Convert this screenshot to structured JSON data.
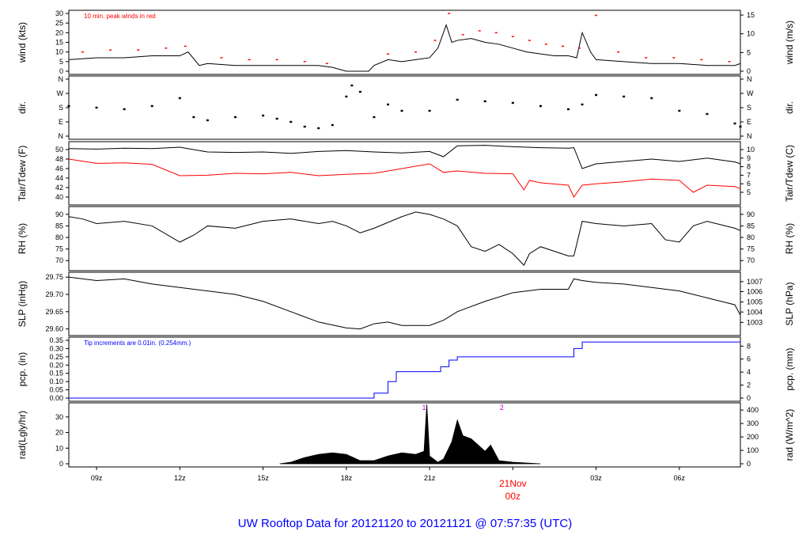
{
  "title": "UW Rooftop Data for 20121120  to  20121121 @ 07:57:35  (UTC)",
  "colors": {
    "series_primary": "#000000",
    "series_dew": "#ff0000",
    "series_precip": "#0000ff",
    "peak_marker": "#ff0000",
    "title": "#0000ff",
    "date_label": "#ff0000",
    "noon_marker": "#cc00cc"
  },
  "chart_data": [
    {
      "type": "line",
      "panel": "wind",
      "left_label": "wind (kts)",
      "right_label": "wind (m/s)",
      "annotation": "10 min. peak winds in red",
      "ylim": [
        0,
        30
      ],
      "left_ticks": [
        0,
        5,
        10,
        15,
        20,
        25,
        30
      ],
      "right_ticks": [
        0,
        5,
        10,
        15
      ],
      "right_ticks_kts": [
        0,
        9.72,
        19.44,
        29.16
      ],
      "series": [
        {
          "name": "wind",
          "color": "#000000",
          "x": [
            8,
            9,
            10,
            11,
            12,
            12.3,
            12.7,
            13,
            14,
            15,
            16,
            17,
            17.5,
            18,
            18.3,
            18.8,
            19,
            19.5,
            20,
            20.5,
            21,
            21.3,
            21.6,
            21.8,
            22,
            22.5,
            23,
            23.5,
            24,
            24.5,
            25,
            25.5,
            26,
            26.3,
            26.5,
            26.8,
            27,
            28,
            29,
            30,
            31,
            32,
            32.2
          ],
          "y": [
            6,
            7,
            7,
            8,
            8,
            10,
            3,
            4,
            3,
            3,
            3,
            3,
            2,
            0,
            0,
            0,
            3,
            6,
            5,
            6,
            7,
            12,
            24,
            15,
            16,
            17,
            15,
            14,
            12,
            10,
            9,
            8,
            8,
            7,
            20,
            10,
            6,
            5,
            4,
            4,
            3,
            3,
            4
          ]
        },
        {
          "name": "10 min. peak winds",
          "color": "#ff0000",
          "x": [
            8.5,
            9.5,
            10.5,
            11.5,
            12.2,
            13.5,
            14.5,
            15.5,
            16.5,
            17.3,
            19.5,
            20.5,
            21.2,
            21.7,
            22.2,
            22.8,
            23.4,
            24,
            24.6,
            25.2,
            25.8,
            26.4,
            27,
            27.8,
            28.8,
            29.8,
            30.8,
            31.8
          ],
          "y": [
            10,
            11,
            11,
            12,
            13,
            7,
            6,
            6,
            5,
            4,
            9,
            10,
            16,
            30,
            19,
            21,
            20,
            18,
            16,
            14,
            13,
            12,
            29,
            10,
            7,
            7,
            6,
            5
          ]
        }
      ]
    },
    {
      "type": "scatter",
      "panel": "dir",
      "left_label": "dir.",
      "right_label": "dir.",
      "ylim": [
        0,
        360
      ],
      "tick_values": [
        0,
        90,
        180,
        270,
        360
      ],
      "tick_labels": [
        "N",
        "E",
        "S",
        "W",
        "N"
      ],
      "series": [
        {
          "name": "direction",
          "color": "#000000",
          "x": [
            8,
            9,
            10,
            11,
            12,
            12.5,
            13,
            14,
            15,
            15.5,
            16,
            16.5,
            17,
            17.5,
            18,
            18.2,
            18.5,
            19,
            19.5,
            20,
            21,
            22,
            23,
            24,
            25,
            26,
            26.5,
            27,
            28,
            29,
            30,
            31,
            32,
            32.2
          ],
          "y": [
            190,
            180,
            170,
            190,
            240,
            120,
            100,
            120,
            130,
            110,
            90,
            60,
            50,
            70,
            250,
            320,
            280,
            120,
            200,
            160,
            160,
            230,
            220,
            210,
            190,
            170,
            200,
            260,
            250,
            240,
            160,
            140,
            80,
            60
          ]
        }
      ]
    },
    {
      "type": "line",
      "panel": "temp",
      "left_label": "Tair/Tdew (F)",
      "right_label": "Tair/Tdew (C)",
      "ylim": [
        39,
        51
      ],
      "left_ticks": [
        40,
        42,
        44,
        46,
        48,
        50
      ],
      "right_ticks": [
        5,
        6,
        7,
        8,
        9,
        10
      ],
      "right_ticks_f": [
        41,
        42.8,
        44.6,
        46.4,
        48.2,
        50
      ],
      "series": [
        {
          "name": "Tair",
          "color": "#000000",
          "x": [
            8,
            9,
            10,
            11,
            12,
            13,
            14,
            15,
            16,
            17,
            18,
            19,
            20,
            21,
            21.5,
            22,
            23,
            24,
            25,
            26,
            26.2,
            26.5,
            27,
            28,
            29,
            30,
            31,
            32,
            32.2
          ],
          "y": [
            50.2,
            50.1,
            50.3,
            50.2,
            50.5,
            49.5,
            49.4,
            49.5,
            49.2,
            49.6,
            49.8,
            49.5,
            49.3,
            49.6,
            48.5,
            50.8,
            50.9,
            50.6,
            50.4,
            50.3,
            50.4,
            46,
            47,
            47.5,
            48,
            47.5,
            48.2,
            47.4,
            47
          ]
        },
        {
          "name": "Tdew",
          "color": "#ff0000",
          "x": [
            8,
            9,
            10,
            11,
            12,
            13,
            14,
            15,
            16,
            17,
            18,
            19,
            20,
            21,
            21.5,
            22,
            23,
            24,
            24.4,
            24.6,
            25,
            26,
            26.2,
            26.5,
            27,
            28,
            29,
            30,
            30.5,
            31,
            32,
            32.2
          ],
          "y": [
            48,
            47.1,
            47.2,
            46.9,
            44.5,
            44.6,
            45,
            44.9,
            45.2,
            44.5,
            44.8,
            45,
            46,
            47,
            45.2,
            45.5,
            45,
            44.9,
            41.5,
            43.5,
            43,
            42.5,
            40,
            42.5,
            42.8,
            43.2,
            43.8,
            43.5,
            41,
            42.5,
            42.2,
            41.8
          ]
        }
      ]
    },
    {
      "type": "line",
      "panel": "rh",
      "left_label": "RH (%)",
      "right_label": "RH (%)",
      "ylim": [
        67,
        92
      ],
      "left_ticks": [
        70,
        75,
        80,
        85,
        90
      ],
      "right_ticks": [
        70,
        75,
        80,
        85,
        90
      ],
      "series": [
        {
          "name": "RH",
          "color": "#000000",
          "x": [
            8,
            8.5,
            9,
            10,
            11,
            12,
            12.5,
            13,
            14,
            15,
            16,
            17,
            17.5,
            18,
            18.5,
            19,
            20,
            20.5,
            21,
            21.5,
            22,
            22.5,
            23,
            23.5,
            24,
            24.4,
            24.6,
            25,
            26,
            26.2,
            26.5,
            27,
            28,
            29,
            29.5,
            30,
            30.5,
            31,
            32,
            32.2
          ],
          "y": [
            89,
            88,
            86,
            87,
            85,
            78,
            81,
            85,
            84,
            87,
            88,
            86,
            87,
            85,
            82,
            84,
            89,
            91,
            90,
            88,
            85,
            76,
            74,
            77,
            73,
            68,
            73,
            76,
            72,
            72,
            87,
            86,
            85,
            86,
            79,
            78,
            85,
            87,
            84,
            83
          ]
        }
      ]
    },
    {
      "type": "line",
      "panel": "slp",
      "left_label": "SLP (inHg)",
      "right_label": "SLP (hPa)",
      "ylim": [
        29.59,
        29.755
      ],
      "left_ticks": [
        29.6,
        29.65,
        29.7,
        29.75
      ],
      "left_tick_labels": [
        "29.60",
        "29.65",
        "29.70",
        "29.75"
      ],
      "right_ticks": [
        1003,
        1004,
        1005,
        1006,
        1007
      ],
      "right_ticks_inhg": [
        29.619,
        29.649,
        29.678,
        29.708,
        29.737
      ],
      "series": [
        {
          "name": "SLP",
          "color": "#000000",
          "x": [
            8,
            9,
            10,
            11,
            12,
            13,
            14,
            15,
            16,
            17,
            18,
            18.5,
            19,
            19.5,
            20,
            21,
            21.5,
            22,
            23,
            24,
            25,
            26,
            26.2,
            26.5,
            27,
            28,
            29,
            30,
            31,
            32,
            32.2
          ],
          "y": [
            29.75,
            29.74,
            29.745,
            29.73,
            29.72,
            29.71,
            29.7,
            29.68,
            29.65,
            29.62,
            29.603,
            29.6,
            29.615,
            29.62,
            29.61,
            29.61,
            29.625,
            29.65,
            29.68,
            29.705,
            29.715,
            29.715,
            29.745,
            29.74,
            29.735,
            29.73,
            29.72,
            29.71,
            29.69,
            29.67,
            29.64
          ]
        }
      ]
    },
    {
      "type": "line",
      "panel": "pcp",
      "left_label": "pcp. (in)",
      "right_label": "pcp. (mm)",
      "annotation": "Tip increments are 0.01in. (0.254mm.)",
      "ylim": [
        0,
        0.35
      ],
      "left_ticks": [
        0,
        0.05,
        0.1,
        0.15,
        0.2,
        0.25,
        0.3,
        0.35
      ],
      "left_tick_labels": [
        "0.00",
        "0.05",
        "0.10",
        "0.15",
        "0.20",
        "0.25",
        "0.30",
        "0.35"
      ],
      "right_ticks": [
        0,
        2,
        4,
        6,
        8
      ],
      "right_ticks_in": [
        0,
        0.0787,
        0.1575,
        0.2362,
        0.315
      ],
      "series": [
        {
          "name": "precip",
          "color": "#0000ff",
          "x": [
            8,
            18.6,
            19,
            19.5,
            19.8,
            21,
            21.4,
            21.7,
            22,
            26,
            26.2,
            26.5,
            32.2
          ],
          "y": [
            0,
            0,
            0.03,
            0.1,
            0.16,
            0.16,
            0.19,
            0.23,
            0.25,
            0.25,
            0.3,
            0.34,
            0.34
          ]
        }
      ]
    },
    {
      "type": "area",
      "panel": "rad",
      "left_label": "rad(Lgly/hr)",
      "right_label": "rad (W/m^2)",
      "ylim": [
        0,
        37
      ],
      "left_ticks": [
        0,
        10,
        20,
        30
      ],
      "right_ticks": [
        0,
        100,
        200,
        300,
        400
      ],
      "right_ticks_lgly": [
        0,
        8.6,
        17.2,
        25.8,
        34.4
      ],
      "noon_markers": [
        {
          "x": 20.8,
          "label": "1"
        },
        {
          "x": 23.6,
          "label": "2"
        }
      ],
      "series": [
        {
          "name": "radiation",
          "color": "#000000",
          "x": [
            15.6,
            16,
            16.5,
            17,
            17.5,
            18,
            18.5,
            19,
            19.5,
            20,
            20.5,
            20.8,
            20.9,
            21,
            21.3,
            21.5,
            21.8,
            22,
            22.2,
            22.5,
            23,
            23.2,
            23.5,
            24,
            24.5,
            25
          ],
          "y": [
            0,
            1,
            4,
            6,
            7,
            6,
            2,
            2,
            5,
            7,
            6,
            8,
            38,
            5,
            1,
            3,
            14,
            28,
            18,
            16,
            8,
            12,
            2,
            1,
            0.5,
            0
          ]
        }
      ]
    }
  ],
  "x_axis": {
    "range": [
      8,
      32.2
    ],
    "ticks": [
      9,
      12,
      15,
      18,
      21,
      24,
      27,
      30
    ],
    "tick_labels": [
      "09z",
      "12z",
      "15z",
      "18z",
      "21z",
      "00z",
      "03z",
      "06z"
    ],
    "date_label": "21Nov",
    "date_label_x": 24
  }
}
